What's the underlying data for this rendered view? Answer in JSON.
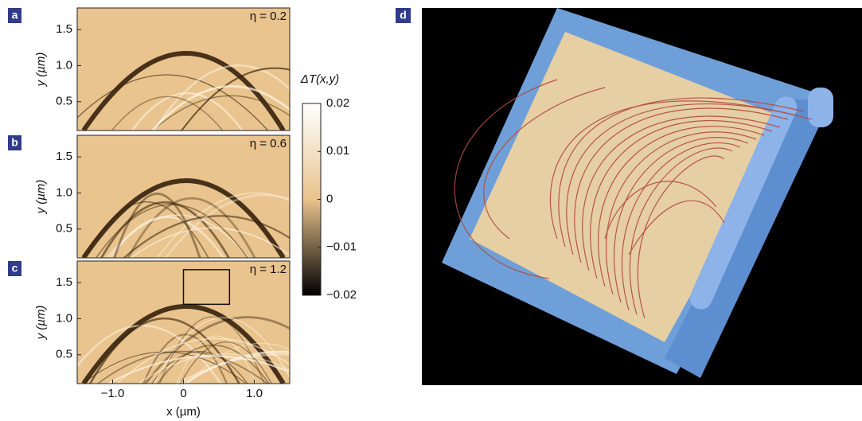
{
  "chart_data": [
    {
      "type": "heatmap",
      "panel": "a",
      "annotation": "η = 0.2",
      "ylabel": "y (µm)",
      "xlim": [
        -1.5,
        1.5
      ],
      "ylim": [
        0.1,
        1.8
      ],
      "yticks": [
        0.5,
        {
          "value": 1,
          "label": "1.0"
        },
        1.5
      ]
    },
    {
      "type": "heatmap",
      "panel": "b",
      "annotation": "η = 0.6",
      "ylabel": "y (µm)",
      "xlim": [
        -1.5,
        1.5
      ],
      "ylim": [
        0.1,
        1.8
      ],
      "yticks": [
        0.5,
        {
          "value": 1,
          "label": "1.0"
        },
        1.5
      ]
    },
    {
      "type": "heatmap",
      "panel": "c",
      "annotation": "η = 1.2",
      "ylabel": "y (µm)",
      "xlabel": "x (µm)",
      "xlim": [
        -1.5,
        1.5
      ],
      "ylim": [
        0.1,
        1.8
      ],
      "yticks": [
        0.5,
        {
          "value": 1,
          "label": "1.0"
        },
        1.5
      ],
      "xticks": [
        {
          "value": -1,
          "label": "−1.0"
        },
        0,
        {
          "value": 1,
          "label": "1.0"
        }
      ],
      "box": {
        "x": [
          0,
          0.65
        ],
        "y": [
          1.2,
          1.68
        ]
      }
    },
    {
      "type": "colorbar",
      "title": "ΔT(x,y)",
      "ylim": [
        -0.02,
        0.02
      ],
      "yticks": [
        0.02,
        0.01,
        0,
        {
          "value": -0.01,
          "label": "−0.01"
        },
        {
          "value": -0.02,
          "label": "−0.02"
        }
      ]
    },
    {
      "type": "image",
      "panel": "d"
    }
  ]
}
